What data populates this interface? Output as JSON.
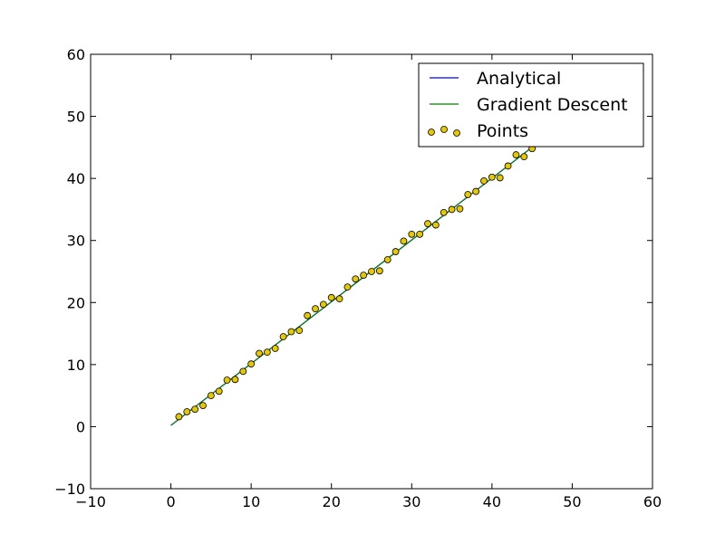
{
  "chart_data": {
    "type": "scatter",
    "title": "",
    "xlabel": "",
    "ylabel": "",
    "xlim": [
      -10,
      60
    ],
    "ylim": [
      -10,
      60
    ],
    "xticks": [
      -10,
      0,
      10,
      20,
      30,
      40,
      50,
      60
    ],
    "yticks": [
      -10,
      0,
      10,
      20,
      30,
      40,
      50,
      60
    ],
    "xtick_labels": [
      "−10",
      "0",
      "10",
      "20",
      "30",
      "40",
      "50",
      "60"
    ],
    "ytick_labels": [
      "−10",
      "0",
      "10",
      "20",
      "30",
      "40",
      "50",
      "60"
    ],
    "grid": false,
    "legend_position": "top-right",
    "series": [
      {
        "name": "Analytical",
        "kind": "line",
        "color": "#0000ff",
        "x": [
          0,
          49
        ],
        "y": [
          0.2,
          49.0
        ]
      },
      {
        "name": "Gradient Descent",
        "kind": "line",
        "color": "#008000",
        "x": [
          0,
          49
        ],
        "y": [
          0.2,
          49.0
        ]
      },
      {
        "name": "Points",
        "kind": "scatter",
        "color": "#e6c800",
        "edge_color": "#000000",
        "x": [
          1,
          2,
          3,
          4,
          5,
          6,
          7,
          8,
          9,
          10,
          11,
          12,
          13,
          14,
          15,
          16,
          17,
          18,
          19,
          20,
          21,
          22,
          23,
          24,
          25,
          26,
          27,
          28,
          29,
          30,
          31,
          32,
          33,
          34,
          35,
          36,
          37,
          38,
          39,
          40,
          41,
          42,
          43,
          44,
          45,
          46,
          47,
          48,
          49
        ],
        "y": [
          1.6,
          2.4,
          2.8,
          3.4,
          5.0,
          5.7,
          7.5,
          7.6,
          8.9,
          10.1,
          11.8,
          12.0,
          12.6,
          14.5,
          15.3,
          15.5,
          17.9,
          19.0,
          19.7,
          20.8,
          20.6,
          22.5,
          23.8,
          24.4,
          25.0,
          25.1,
          26.9,
          28.2,
          29.9,
          31.0,
          31.0,
          32.7,
          32.5,
          34.5,
          35.0,
          35.1,
          37.4,
          37.9,
          39.6,
          40.2,
          40.1,
          42.0,
          43.8,
          43.5,
          44.8,
          45.9,
          47.5,
          48.0,
          48.4
        ]
      }
    ]
  }
}
